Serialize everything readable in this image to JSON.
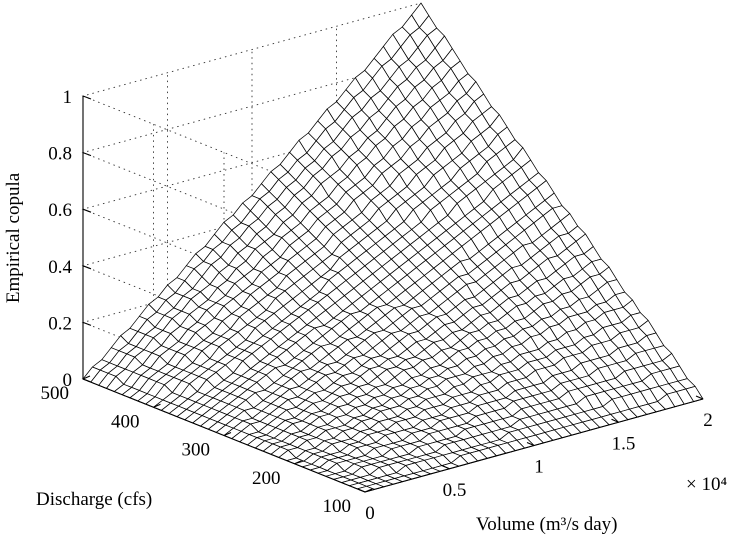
{
  "chart_data": {
    "type": "surface",
    "title": "",
    "xlabel": "Volume (m³/s day)",
    "x_exponent": "× 10⁴",
    "ylabel": "Discharge (cfs)",
    "zlabel": "Empirical copula",
    "xlim": [
      0,
      20000
    ],
    "ylim": [
      100,
      500
    ],
    "zlim": [
      0,
      1
    ],
    "x_ticks": [
      "0",
      "0.5",
      "1",
      "1.5",
      "2"
    ],
    "y_ticks": [
      "100",
      "200",
      "300",
      "400",
      "500"
    ],
    "z_ticks": [
      "0",
      "0.2",
      "0.4",
      "0.6",
      "0.8",
      "1"
    ],
    "grid": true,
    "surface": {
      "description_source": "empirical copula C(u,v) approx u*v, rising from 0 at the low corners to 1 at the (2e4, 500) corner",
      "corner_values": [
        {
          "volume": 0,
          "discharge": 100,
          "copula": 0
        },
        {
          "volume": 20000,
          "discharge": 100,
          "copula": 0
        },
        {
          "volume": 0,
          "discharge": 500,
          "copula": 0
        },
        {
          "volume": 20000,
          "discharge": 500,
          "copula": 1
        }
      ]
    }
  }
}
